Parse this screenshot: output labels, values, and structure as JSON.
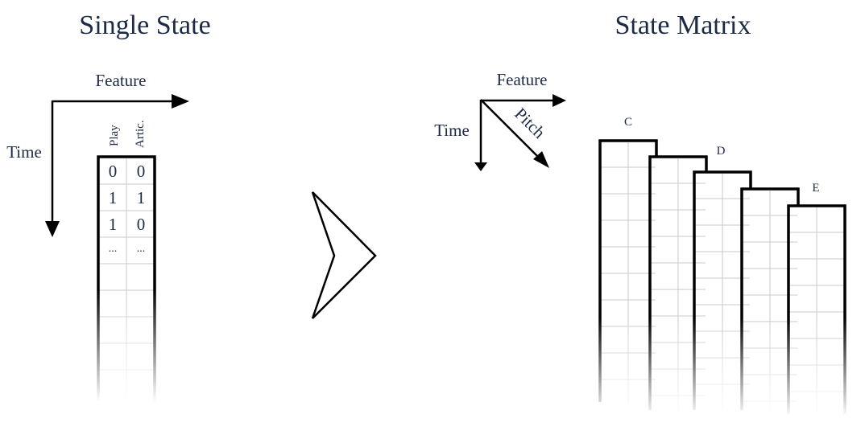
{
  "left_panel": {
    "title": "Single State",
    "axis_feature": "Feature",
    "axis_time": "Time",
    "columns": [
      "Play",
      "Artic."
    ],
    "rows": [
      [
        "0",
        "0"
      ],
      [
        "1",
        "1"
      ],
      [
        "1",
        "0"
      ],
      [
        "...",
        "..."
      ]
    ]
  },
  "right_panel": {
    "title": "State Matrix",
    "axis_feature": "Feature",
    "axis_time": "Time",
    "axis_pitch": "Pitch",
    "notes": [
      "C",
      "D",
      "E"
    ]
  }
}
